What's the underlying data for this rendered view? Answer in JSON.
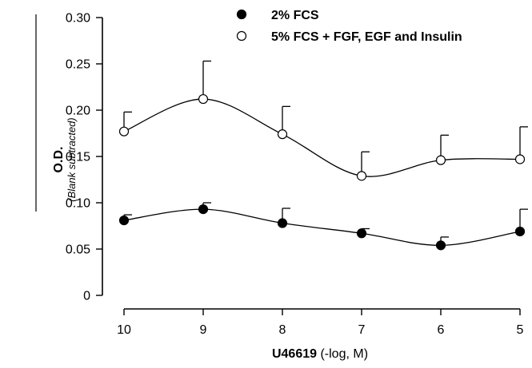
{
  "chart_data": {
    "type": "line",
    "xlabel": {
      "bold": "U46619",
      "rest": " (-log, M)"
    },
    "ylabel": {
      "main": "O.D.",
      "sub": "(Blank subtracted)"
    },
    "x": [
      10,
      9,
      8,
      7,
      6,
      5
    ],
    "xlim": [
      10,
      5
    ],
    "ylim": [
      0,
      0.3
    ],
    "x_ticks": [
      "10",
      "9",
      "8",
      "7",
      "6",
      "5"
    ],
    "y_ticks": [
      "0",
      "0.05",
      "0.10",
      "0.15",
      "0.20",
      "0.25",
      "0.30"
    ],
    "y_tick_values": [
      0,
      0.05,
      0.1,
      0.15,
      0.2,
      0.25,
      0.3
    ],
    "grid": false,
    "legend_position": "top-right",
    "series": [
      {
        "name": "2% FCS",
        "marker": "filled-circle",
        "values": [
          0.081,
          0.093,
          0.078,
          0.067,
          0.054,
          0.069
        ],
        "errors": [
          0.006,
          0.007,
          0.016,
          0.005,
          0.009,
          0.024
        ]
      },
      {
        "name": "5% FCS + FGF, EGF and Insulin",
        "marker": "open-circle",
        "values": [
          0.177,
          0.212,
          0.174,
          0.129,
          0.146,
          0.147
        ],
        "errors": [
          0.021,
          0.041,
          0.03,
          0.026,
          0.027,
          0.035
        ]
      }
    ],
    "colors": {
      "line": "#000000",
      "marker_fill_open": "#ffffff",
      "marker_fill_filled": "#000000"
    }
  }
}
